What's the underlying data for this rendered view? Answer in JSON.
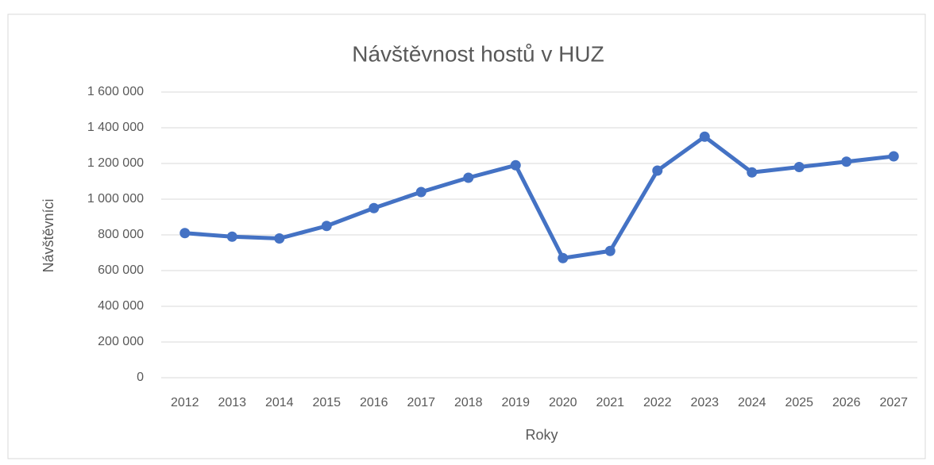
{
  "chart_data": {
    "type": "line",
    "title": "Návštěvnost hostů v HUZ",
    "x_label": "Roky",
    "y_label": "Návštěvníci",
    "categories": [
      "2012",
      "2013",
      "2014",
      "2015",
      "2016",
      "2017",
      "2018",
      "2019",
      "2020",
      "2021",
      "2022",
      "2023",
      "2024",
      "2025",
      "2026",
      "2027"
    ],
    "series": [
      {
        "name": "Návštěvníci",
        "color": "#4472c4",
        "values": [
          810000,
          790000,
          780000,
          850000,
          950000,
          1040000,
          1120000,
          1190000,
          670000,
          710000,
          1160000,
          1350000,
          1150000,
          1180000,
          1210000,
          1240000
        ]
      }
    ],
    "ylim": [
      0,
      1600000
    ],
    "yticks": [
      0,
      {
        "value": 200000,
        "label": "200 000"
      },
      {
        "value": 400000,
        "label": "400 000"
      },
      {
        "value": 600000,
        "label": "600 000"
      },
      {
        "value": 800000,
        "label": "800 000"
      },
      {
        "value": 1000000,
        "label": "1 000 000"
      },
      {
        "value": 1200000,
        "label": "1 200 000"
      },
      {
        "value": 1400000,
        "label": "1 400 000"
      },
      {
        "value": 1600000,
        "label": "1 600 000"
      }
    ],
    "grid": true
  }
}
